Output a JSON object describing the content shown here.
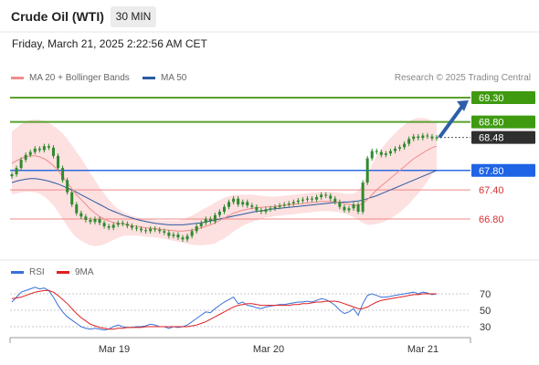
{
  "header": {
    "title": "Crude Oil (WTI)",
    "timeframe": "30 MIN",
    "datetime": "Friday, March 21, 2025 2:22:56 AM CET"
  },
  "legend": {
    "ma20_label": "MA 20 + Bollinger Bands",
    "ma50_label": "MA 50",
    "rsi_label": "RSI",
    "rsi_ma_label": "9MA"
  },
  "credit": "Research © 2025 Trading Central",
  "colors": {
    "ma20": "#f08c8c",
    "ma50": "#2c5aa0",
    "bollinger_fill": "#fde0e0",
    "candle": "#2e8b2e",
    "resistance": "#5aa02c",
    "pivot": "#2d6be4",
    "support": "#e05050",
    "current": "#333333",
    "rsi": "#3a6fd8",
    "rsi_ma": "#e02020",
    "arrow": "#2d5fa8"
  },
  "chart_data": [
    {
      "type": "candlestick",
      "x_labels": [
        "Mar 19",
        "Mar 20",
        "Mar 21"
      ],
      "ylim": [
        66.0,
        69.6
      ],
      "levels": [
        {
          "value": 69.3,
          "label": "69.30",
          "kind": "resistance"
        },
        {
          "value": 68.8,
          "label": "68.80",
          "kind": "resistance"
        },
        {
          "value": 68.48,
          "label": "68.48",
          "kind": "current"
        },
        {
          "value": 67.8,
          "label": "67.80",
          "kind": "pivot"
        },
        {
          "value": 67.4,
          "label": "67.40",
          "kind": "support"
        },
        {
          "value": 66.8,
          "label": "66.80",
          "kind": "support"
        }
      ],
      "close": [
        67.72,
        67.85,
        68.02,
        68.12,
        68.18,
        68.25,
        68.22,
        68.3,
        68.27,
        68.1,
        67.85,
        67.6,
        67.35,
        67.1,
        66.92,
        66.85,
        66.78,
        66.74,
        66.8,
        66.72,
        66.65,
        66.62,
        66.68,
        66.72,
        66.7,
        66.66,
        66.62,
        66.6,
        66.57,
        66.55,
        66.6,
        66.58,
        66.55,
        66.52,
        66.45,
        66.48,
        66.42,
        66.38,
        66.45,
        66.55,
        66.65,
        66.72,
        66.8,
        66.75,
        66.88,
        66.95,
        67.05,
        67.15,
        67.22,
        67.1,
        67.15,
        67.08,
        67.05,
        66.98,
        66.95,
        67.0,
        67.02,
        67.05,
        67.08,
        67.1,
        67.12,
        67.15,
        67.18,
        67.2,
        67.22,
        67.2,
        67.25,
        67.3,
        67.28,
        67.22,
        67.15,
        67.05,
        66.98,
        67.02,
        67.1,
        66.95,
        67.55,
        68.05,
        68.2,
        68.18,
        68.12,
        68.15,
        68.2,
        68.25,
        68.28,
        68.35,
        68.45,
        68.5,
        68.47,
        68.52,
        68.5,
        68.46,
        68.48
      ],
      "ma20": [
        67.95,
        68.0,
        68.05,
        68.08,
        68.1,
        68.1,
        68.08,
        68.04,
        67.98,
        67.9,
        67.8,
        67.68,
        67.55,
        67.42,
        67.3,
        67.2,
        67.1,
        67.0,
        66.92,
        66.85,
        66.8,
        66.76,
        66.73,
        66.71,
        66.7,
        66.68,
        66.66,
        66.65,
        66.63,
        66.62,
        66.61,
        66.6,
        66.59,
        66.58,
        66.57,
        66.56,
        66.55,
        66.55,
        66.56,
        66.57,
        66.59,
        66.62,
        66.65,
        66.68,
        66.72,
        66.77,
        66.82,
        66.87,
        66.92,
        66.95,
        66.98,
        67.0,
        67.02,
        67.03,
        67.04,
        67.05,
        67.05,
        67.06,
        67.07,
        67.08,
        67.09,
        67.1,
        67.11,
        67.12,
        67.13,
        67.14,
        67.15,
        67.16,
        67.16,
        67.16,
        67.15,
        67.14,
        67.12,
        67.1,
        67.08,
        67.08,
        67.12,
        67.2,
        67.3,
        67.4,
        67.48,
        67.56,
        67.64,
        67.72,
        67.8,
        67.88,
        67.96,
        68.04,
        68.1,
        68.16,
        68.22,
        68.27,
        68.3
      ],
      "ma50": [
        67.55,
        67.58,
        67.6,
        67.62,
        67.63,
        67.63,
        67.62,
        67.6,
        67.58,
        67.55,
        67.52,
        67.48,
        67.44,
        67.4,
        67.35,
        67.3,
        67.25,
        67.2,
        67.15,
        67.1,
        67.05,
        67.0,
        66.96,
        66.92,
        66.88,
        66.85,
        66.82,
        66.79,
        66.77,
        66.75,
        66.73,
        66.71,
        66.7,
        66.69,
        66.68,
        66.68,
        66.68,
        66.68,
        66.69,
        66.7,
        66.71,
        66.72,
        66.74,
        66.76,
        66.78,
        66.8,
        66.82,
        66.84,
        66.86,
        66.88,
        66.9,
        66.92,
        66.94,
        66.96,
        66.97,
        66.98,
        67.0,
        67.01,
        67.02,
        67.03,
        67.04,
        67.05,
        67.06,
        67.07,
        67.08,
        67.09,
        67.1,
        67.11,
        67.12,
        67.13,
        67.14,
        67.14,
        67.15,
        67.15,
        67.16,
        67.17,
        67.19,
        67.22,
        67.25,
        67.28,
        67.32,
        67.36,
        67.4,
        67.44,
        67.48,
        67.52,
        67.56,
        67.6,
        67.64,
        67.68,
        67.72,
        67.76,
        67.8
      ],
      "bb_width": [
        0.65,
        0.68,
        0.7,
        0.72,
        0.74,
        0.75,
        0.76,
        0.78,
        0.8,
        0.82,
        0.85,
        0.88,
        0.9,
        0.9,
        0.88,
        0.85,
        0.8,
        0.74,
        0.68,
        0.6,
        0.52,
        0.44,
        0.36,
        0.3,
        0.25,
        0.22,
        0.2,
        0.19,
        0.18,
        0.18,
        0.18,
        0.18,
        0.18,
        0.19,
        0.2,
        0.21,
        0.22,
        0.24,
        0.27,
        0.3,
        0.33,
        0.36,
        0.38,
        0.4,
        0.42,
        0.42,
        0.42,
        0.4,
        0.38,
        0.35,
        0.32,
        0.3,
        0.28,
        0.26,
        0.24,
        0.22,
        0.21,
        0.2,
        0.2,
        0.2,
        0.2,
        0.2,
        0.2,
        0.2,
        0.2,
        0.2,
        0.2,
        0.2,
        0.2,
        0.2,
        0.2,
        0.2,
        0.2,
        0.22,
        0.24,
        0.3,
        0.4,
        0.52,
        0.62,
        0.7,
        0.76,
        0.8,
        0.83,
        0.85,
        0.86,
        0.86,
        0.85,
        0.82,
        0.78,
        0.72,
        0.64,
        0.55,
        0.48
      ]
    },
    {
      "type": "line",
      "name": "RSI",
      "ylim": [
        20,
        80
      ],
      "y_ticks": [
        70,
        50,
        30
      ],
      "rsi": [
        60,
        66,
        72,
        74,
        76,
        78,
        76,
        77,
        74,
        66,
        56,
        48,
        42,
        38,
        34,
        30,
        28,
        27,
        28,
        27,
        26,
        27,
        30,
        32,
        30,
        29,
        29,
        30,
        30,
        31,
        33,
        32,
        30,
        30,
        28,
        30,
        29,
        30,
        32,
        36,
        40,
        44,
        48,
        47,
        52,
        56,
        60,
        63,
        66,
        58,
        60,
        56,
        55,
        53,
        52,
        54,
        55,
        56,
        57,
        57,
        58,
        59,
        60,
        60,
        61,
        60,
        62,
        64,
        63,
        60,
        56,
        50,
        46,
        48,
        52,
        44,
        58,
        68,
        70,
        68,
        66,
        66,
        67,
        68,
        69,
        70,
        71,
        72,
        70,
        72,
        71,
        69,
        70
      ],
      "rsi_9ma": [
        64,
        65,
        66,
        68,
        70,
        72,
        73,
        74,
        74,
        72,
        68,
        63,
        58,
        52,
        46,
        41,
        37,
        33,
        31,
        29,
        28,
        27,
        27,
        28,
        28,
        29,
        29,
        29,
        29,
        30,
        30,
        30,
        30,
        30,
        30,
        30,
        30,
        30,
        30,
        31,
        32,
        34,
        36,
        39,
        42,
        45,
        48,
        51,
        54,
        56,
        57,
        58,
        58,
        57,
        56,
        56,
        56,
        56,
        56,
        56,
        56,
        57,
        57,
        58,
        58,
        59,
        60,
        60,
        61,
        61,
        61,
        60,
        58,
        56,
        54,
        52,
        52,
        54,
        57,
        60,
        62,
        63,
        64,
        65,
        66,
        67,
        68,
        69,
        69,
        70,
        70,
        70,
        70
      ]
    }
  ]
}
